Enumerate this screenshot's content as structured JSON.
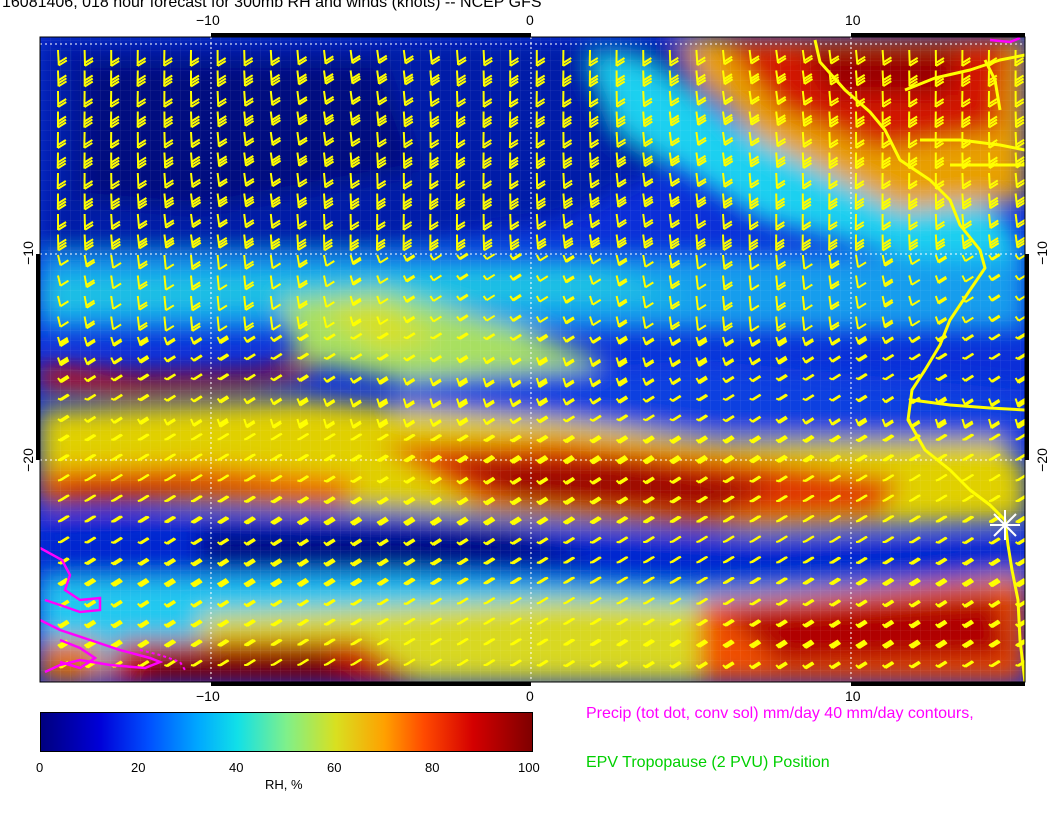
{
  "title": "16081406, 018 hour forecast for 300mb RH and winds (knots) -- NCEP GFS",
  "axes": {
    "top": [
      "−10",
      "0",
      "10"
    ],
    "bottom": [
      "−10",
      "0",
      "10"
    ],
    "left": [
      "−10",
      "−20"
    ],
    "right": [
      "−10",
      "−20"
    ]
  },
  "colorbar": {
    "labels": [
      "0",
      "20",
      "40",
      "60",
      "80",
      "100"
    ],
    "title": "RH, %"
  },
  "legend": {
    "precip": "Precip (tot dot, conv sol) mm/day 40 mm/day contours,",
    "epv": "EPV Tropopause (2 PVU) Position"
  },
  "colors": {
    "wind_barbs": "#ffff00",
    "coastline": "#ffff00",
    "precip": "#ff00ff",
    "epv": "#00d000",
    "marker": "#ffffff"
  },
  "icons": [
    "wind-barb-icon",
    "station-star-icon"
  ]
}
